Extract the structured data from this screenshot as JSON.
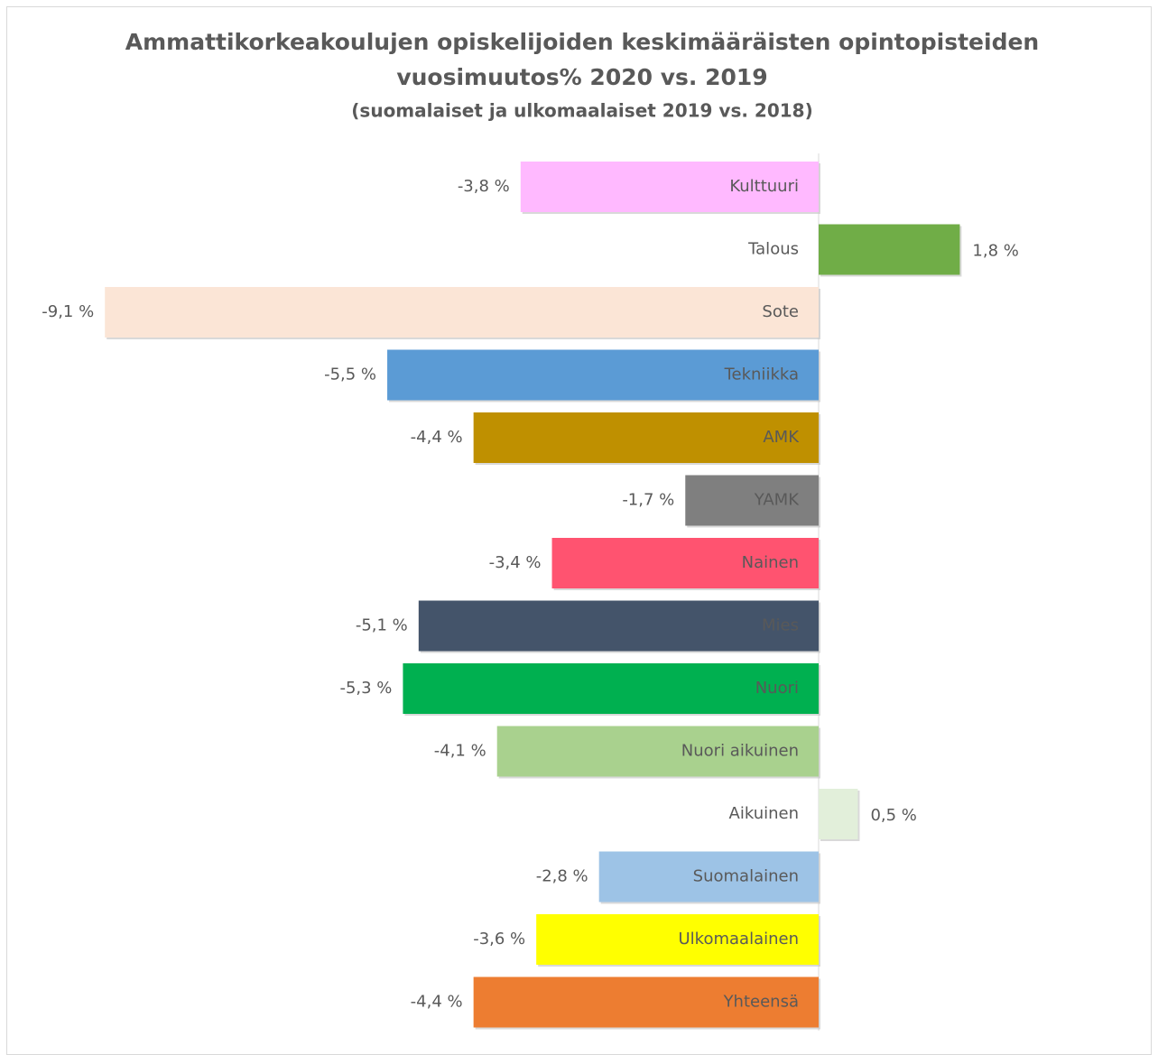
{
  "chart_data": {
    "type": "barh",
    "title": [
      "Ammattikorkeakoulujen opiskelijoiden keskimääräisten opintopisteiden",
      "vuosimuutos% 2020 vs. 2019"
    ],
    "subtitle": "(suomalaiset ja ulkomaalaiset 2019 vs. 2018)",
    "categories": [
      "Kulttuuri",
      "Talous",
      "Sote",
      "Tekniikka",
      "AMK",
      "YAMK",
      "Nainen",
      "Mies",
      "Nuori",
      "Nuori aikuinen",
      "Aikuinen",
      "Suomalainen",
      "Ulkomaalainen",
      "Yhteensä"
    ],
    "values": [
      -3.8,
      1.8,
      -9.1,
      -5.5,
      -4.4,
      -1.7,
      -3.4,
      -5.1,
      -5.3,
      -4.1,
      0.5,
      -2.8,
      -3.6,
      -4.4
    ],
    "value_labels": [
      "-3,8 %",
      "1,8 %",
      "-9,1 %",
      "-5,5 %",
      "-4,4 %",
      "-1,7 %",
      "-3,4 %",
      "-5,1 %",
      "-5,3 %",
      "-4,1 %",
      "0,5 %",
      "-2,8 %",
      "-3,6 %",
      "-4,4 %"
    ],
    "colors": [
      "#ffb9ff",
      "#70ad47",
      "#fbe5d6",
      "#5b9bd5",
      "#bf9000",
      "#7f7f7f",
      "#ff5370",
      "#44546a",
      "#00b050",
      "#a9d18e",
      "#e2efda",
      "#9dc3e6",
      "#ffff00",
      "#ed7d31"
    ]
  }
}
